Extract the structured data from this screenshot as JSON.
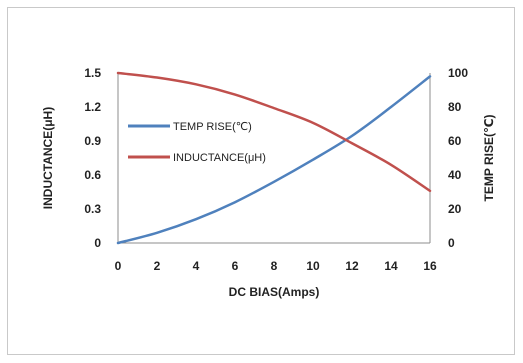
{
  "chart_data": {
    "type": "line",
    "xlabel": "DC  BIAS(Amps)",
    "ylabel_left": "INDUCTANCE(μH)",
    "ylabel_right": "TEMP RISE(℃)",
    "xlim": [
      0,
      16
    ],
    "ylim_left": [
      0,
      1.5
    ],
    "ylim_right": [
      0,
      100
    ],
    "x_ticks": [
      "0",
      "2",
      "4",
      "6",
      "8",
      "10",
      "12",
      "14",
      "16"
    ],
    "y_left_ticks": [
      "0",
      "0.3",
      "0.6",
      "0.9",
      "1.2",
      "1.5"
    ],
    "y_right_ticks": [
      "0",
      "20",
      "40",
      "60",
      "80",
      "100"
    ],
    "grid": false,
    "legend_position": "center-left",
    "series": [
      {
        "name": "TEMP RISE(℃)",
        "axis": "right",
        "color": "#4f81bd",
        "x": [
          0,
          2,
          4,
          6,
          8,
          10,
          12,
          14,
          16
        ],
        "y": [
          0,
          6,
          14,
          24,
          36,
          49,
          63,
          80,
          98
        ]
      },
      {
        "name": "INDUCTANCE(μH)",
        "axis": "left",
        "color": "#c0504d",
        "x": [
          0,
          2,
          4,
          6,
          8,
          10,
          12,
          14,
          16
        ],
        "y": [
          1.5,
          1.46,
          1.4,
          1.31,
          1.19,
          1.06,
          0.88,
          0.69,
          0.46
        ]
      }
    ]
  }
}
